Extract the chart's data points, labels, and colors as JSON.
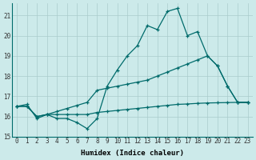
{
  "xlabel": "Humidex (Indice chaleur)",
  "bg_color": "#cceaea",
  "grid_color": "#aacccc",
  "line_color": "#006b6b",
  "xlim": [
    -0.5,
    23.5
  ],
  "ylim": [
    15.0,
    21.6
  ],
  "yticks": [
    15,
    16,
    17,
    18,
    19,
    20,
    21
  ],
  "xticks": [
    0,
    1,
    2,
    3,
    4,
    5,
    6,
    7,
    8,
    9,
    10,
    11,
    12,
    13,
    14,
    15,
    16,
    17,
    18,
    19,
    20,
    21,
    22,
    23
  ],
  "series": {
    "jagged": [
      16.5,
      16.6,
      15.9,
      16.1,
      15.9,
      15.9,
      15.7,
      15.4,
      15.9,
      17.5,
      18.3,
      19.0,
      19.5,
      20.5,
      20.3,
      21.2,
      21.35,
      20.0,
      20.2,
      19.0,
      18.5,
      17.5,
      16.7,
      16.7
    ],
    "upper_linear": [
      16.5,
      16.5,
      16.0,
      16.1,
      16.25,
      16.4,
      16.55,
      16.7,
      17.3,
      17.4,
      17.5,
      17.6,
      17.7,
      17.8,
      18.0,
      18.2,
      18.4,
      18.6,
      18.8,
      19.0,
      18.5,
      17.5,
      16.7,
      16.7
    ],
    "lower_linear": [
      16.5,
      16.5,
      16.0,
      16.1,
      16.1,
      16.1,
      16.1,
      16.1,
      16.2,
      16.25,
      16.3,
      16.35,
      16.4,
      16.45,
      16.5,
      16.55,
      16.6,
      16.62,
      16.65,
      16.67,
      16.68,
      16.69,
      16.7,
      16.7
    ]
  },
  "font_family": "monospace",
  "tick_fontsize": 5.5,
  "xlabel_fontsize": 6.5
}
